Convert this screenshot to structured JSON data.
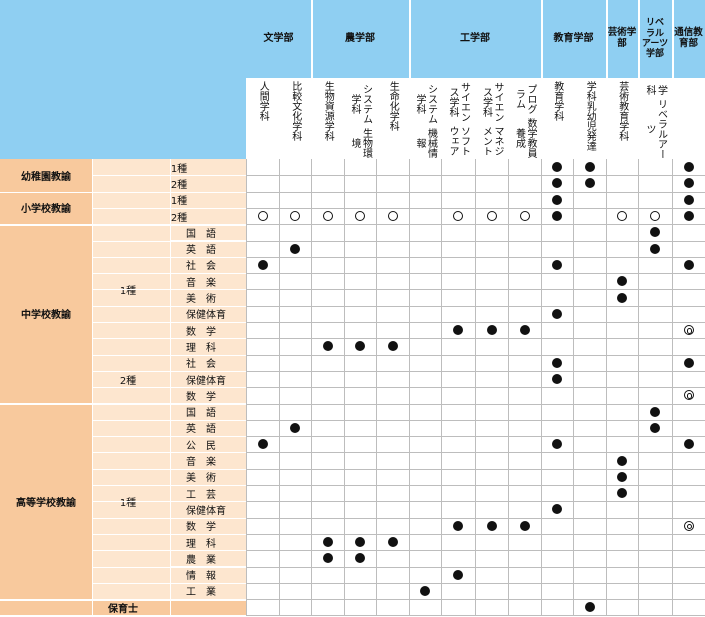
{
  "departments": [
    {
      "label": "文学部",
      "start": 0,
      "span": 2
    },
    {
      "label": "農学部",
      "start": 2,
      "span": 3
    },
    {
      "label": "工学部",
      "start": 5,
      "span": 4
    },
    {
      "label": "教育学部",
      "start": 9,
      "span": 2
    },
    {
      "label": "芸術学部",
      "start": 11,
      "span": 1
    },
    {
      "label": "リベラルアーツ学部",
      "start": 12,
      "span": 1,
      "lines": [
        "リベ",
        "ラル",
        "アーツ学部"
      ]
    },
    {
      "label": "通信教育部",
      "start": 13,
      "span": 1
    }
  ],
  "courses": [
    [
      "人間学科"
    ],
    [
      "比較文化学科"
    ],
    [
      "生物資源学科"
    ],
    [
      "生物環境",
      "システム学科"
    ],
    [
      "生命化学科"
    ],
    [
      "機械情報",
      "システム学科"
    ],
    [
      "ソフトウェア",
      "サイエンス学科"
    ],
    [
      "マネジメント",
      "サイエンス学科"
    ],
    [
      "数学教員養成",
      "プログラム"
    ],
    [
      "教育学科"
    ],
    [
      "乳幼児発達",
      "学科"
    ],
    [
      "芸術教育学科"
    ],
    [
      "リベラルアーツ",
      "学科"
    ],
    [
      ""
    ]
  ],
  "licenses": [
    {
      "label": "幼稚園教諭",
      "grades": [
        {
          "label": "1種",
          "rows": [
            {
              "subject": "",
              "marks": "_________FF__F"
            }
          ]
        },
        {
          "label": "2種",
          "rows": [
            {
              "subject": "",
              "marks": "_________FF__F"
            }
          ]
        }
      ]
    },
    {
      "label": "小学校教諭",
      "grades": [
        {
          "label": "1種",
          "rows": [
            {
              "subject": "",
              "marks": "_________F___F"
            }
          ]
        },
        {
          "label": "2種",
          "rows": [
            {
              "subject": "",
              "marks": "OOOOO_OOOF_OOF"
            }
          ]
        }
      ]
    },
    {
      "label": "中学校教諭",
      "grades": [
        {
          "label": "1種",
          "rows": [
            {
              "subject": "国　語",
              "marks": "____________F_"
            },
            {
              "subject": "英　語",
              "marks": "_F__________F_"
            },
            {
              "subject": "社　会",
              "marks": "F________F___F"
            },
            {
              "subject": "音　楽",
              "marks": "___________F__"
            },
            {
              "subject": "美　術",
              "marks": "___________F__"
            },
            {
              "subject": "保健体育",
              "marks": "_________F____"
            },
            {
              "subject": "数　学",
              "marks": "______FFF____D"
            },
            {
              "subject": "理　科",
              "marks": "__FFF_________"
            }
          ]
        },
        {
          "label": "2種",
          "rows": [
            {
              "subject": "社　会",
              "marks": "_________F___F"
            },
            {
              "subject": "保健体育",
              "marks": "_________F____"
            },
            {
              "subject": "数　学",
              "marks": "_____________D"
            }
          ]
        }
      ]
    },
    {
      "label": "高等学校教諭",
      "grades": [
        {
          "label": "1種",
          "rows": [
            {
              "subject": "国　語",
              "marks": "____________F_"
            },
            {
              "subject": "英　語",
              "marks": "_F__________F_"
            },
            {
              "subject": "公　民",
              "marks": "F________F___F"
            },
            {
              "subject": "音　楽",
              "marks": "___________F__"
            },
            {
              "subject": "美　術",
              "marks": "___________F__"
            },
            {
              "subject": "工　芸",
              "marks": "___________F__"
            },
            {
              "subject": "保健体育",
              "marks": "_________F____"
            },
            {
              "subject": "数　学",
              "marks": "______FFF____D"
            },
            {
              "subject": "理　科",
              "marks": "__FFF_________"
            },
            {
              "subject": "農　業",
              "marks": "__FF__________"
            },
            {
              "subject": "情　報",
              "marks": "______F_______"
            },
            {
              "subject": "工　業",
              "marks": "_____F________"
            }
          ]
        }
      ]
    },
    {
      "label": "保育士",
      "grades": [
        {
          "label": "",
          "rows": [
            {
              "subject": "",
              "marks": "__________F___"
            }
          ]
        }
      ]
    }
  ]
}
